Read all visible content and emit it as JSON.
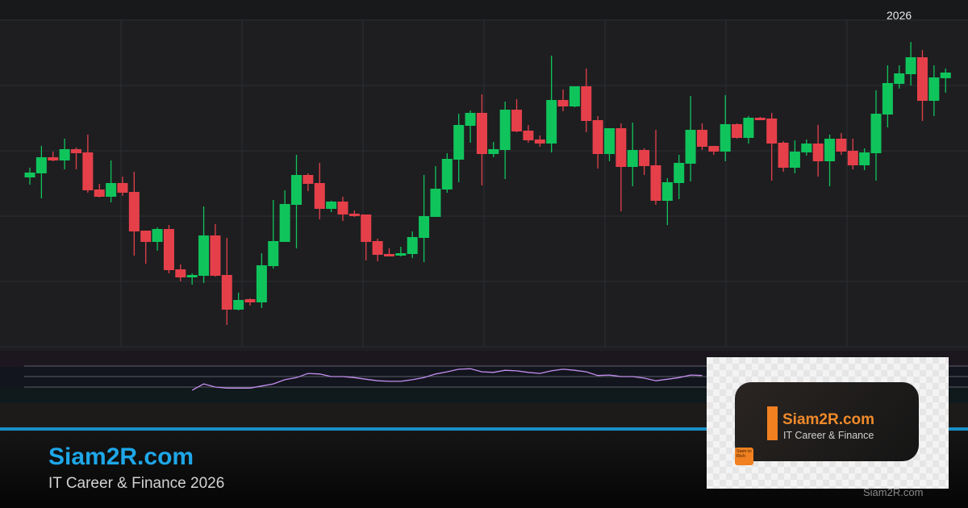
{
  "chart_data": {
    "type": "candlestick",
    "title": "",
    "xlabel": "",
    "ylabel": "",
    "x_tick_labels": [
      "2026"
    ],
    "ylim": [
      0,
      405
    ],
    "grid": true,
    "up_color": "#10c45c",
    "down_color": "#e5404a",
    "ohlc_fields": [
      "open",
      "high",
      "low",
      "close"
    ],
    "candles": [
      [
        210,
        222,
        201,
        216
      ],
      [
        215,
        249,
        184,
        235
      ],
      [
        235,
        242,
        230,
        231
      ],
      [
        231,
        258,
        220,
        245
      ],
      [
        245,
        247,
        220,
        240
      ],
      [
        241,
        263,
        191,
        194
      ],
      [
        195,
        202,
        185,
        186
      ],
      [
        186,
        231,
        179,
        203
      ],
      [
        203,
        211,
        187,
        191
      ],
      [
        192,
        217,
        113,
        143
      ],
      [
        144,
        144,
        103,
        130
      ],
      [
        130,
        148,
        119,
        146
      ],
      [
        146,
        151,
        91,
        95
      ],
      [
        96,
        102,
        81,
        86
      ],
      [
        86,
        91,
        77,
        89
      ],
      [
        88,
        174,
        79,
        138
      ],
      [
        138,
        152,
        87,
        88
      ],
      [
        89,
        135,
        27,
        46
      ],
      [
        46,
        67,
        45,
        58
      ],
      [
        59,
        60,
        51,
        55
      ],
      [
        55,
        116,
        48,
        101
      ],
      [
        100,
        182,
        97,
        131
      ],
      [
        130,
        194,
        130,
        177
      ],
      [
        176,
        238,
        122,
        213
      ],
      [
        213,
        215,
        193,
        202
      ],
      [
        203,
        228,
        158,
        171
      ],
      [
        171,
        181,
        167,
        180
      ],
      [
        180,
        186,
        156,
        164
      ],
      [
        165,
        169,
        161,
        162
      ],
      [
        164,
        164,
        107,
        130
      ],
      [
        131,
        134,
        106,
        114
      ],
      [
        115,
        122,
        112,
        112
      ],
      [
        113,
        124,
        112,
        116
      ],
      [
        115,
        143,
        110,
        136
      ],
      [
        135,
        213,
        105,
        162
      ],
      [
        161,
        224,
        161,
        196
      ],
      [
        195,
        240,
        191,
        233
      ],
      [
        232,
        289,
        204,
        275
      ],
      [
        274,
        293,
        253,
        290
      ],
      [
        290,
        313,
        200,
        239
      ],
      [
        239,
        254,
        235,
        245
      ],
      [
        244,
        304,
        208,
        294
      ],
      [
        294,
        307,
        266,
        267
      ],
      [
        268,
        275,
        253,
        256
      ],
      [
        257,
        262,
        248,
        252
      ],
      [
        252,
        361,
        241,
        306
      ],
      [
        306,
        319,
        292,
        298
      ],
      [
        298,
        323,
        297,
        323
      ],
      [
        323,
        345,
        266,
        280
      ],
      [
        281,
        286,
        221,
        239
      ],
      [
        239,
        271,
        230,
        271
      ],
      [
        271,
        277,
        168,
        223
      ],
      [
        223,
        278,
        199,
        244
      ],
      [
        244,
        246,
        213,
        224
      ],
      [
        225,
        269,
        176,
        181
      ],
      [
        181,
        209,
        151,
        204
      ],
      [
        203,
        238,
        183,
        228
      ],
      [
        227,
        311,
        205,
        269
      ],
      [
        269,
        277,
        244,
        248
      ],
      [
        249,
        249,
        238,
        242
      ],
      [
        242,
        312,
        230,
        276
      ],
      [
        276,
        277,
        258,
        259
      ],
      [
        259,
        286,
        252,
        284
      ],
      [
        284,
        285,
        281,
        281
      ],
      [
        283,
        290,
        206,
        252
      ],
      [
        253,
        255,
        217,
        222
      ],
      [
        222,
        256,
        215,
        242
      ],
      [
        241,
        257,
        237,
        252
      ],
      [
        252,
        275,
        211,
        230
      ],
      [
        230,
        263,
        199,
        258
      ],
      [
        258,
        265,
        238,
        242
      ],
      [
        243,
        258,
        220,
        225
      ],
      [
        225,
        246,
        219,
        241
      ],
      [
        240,
        318,
        206,
        289
      ],
      [
        288,
        349,
        272,
        327
      ],
      [
        326,
        349,
        320,
        339
      ],
      [
        338,
        378,
        324,
        359
      ],
      [
        359,
        368,
        280,
        305
      ],
      [
        305,
        349,
        286,
        334
      ],
      [
        333,
        345,
        315,
        340
      ]
    ],
    "oscillator": {
      "type": "line",
      "color": "#c48ef0",
      "levels": [
        70,
        50,
        30
      ],
      "ylim": [
        0,
        100
      ],
      "start_candle": 15,
      "values": [
        24,
        36,
        30,
        28,
        28,
        28,
        32,
        36,
        44,
        48,
        56,
        55,
        50,
        50,
        48,
        45,
        42,
        41,
        41,
        44,
        48,
        55,
        59,
        64,
        65,
        59,
        58,
        62,
        61,
        58,
        56,
        61,
        64,
        62,
        59,
        52,
        53,
        50,
        50,
        47,
        42,
        45,
        48,
        53,
        52
      ]
    }
  },
  "branding": {
    "site_title": "Siam2R.com",
    "site_subtitle": "IT Career & Finance 2026",
    "accent_color": "#1ea7e8",
    "logo": {
      "name": "Siam2R.com",
      "tagline": "IT Career & Finance",
      "badge": "Siam to Rich",
      "color": "#f08020"
    },
    "watermark": "Siam2R.com"
  }
}
